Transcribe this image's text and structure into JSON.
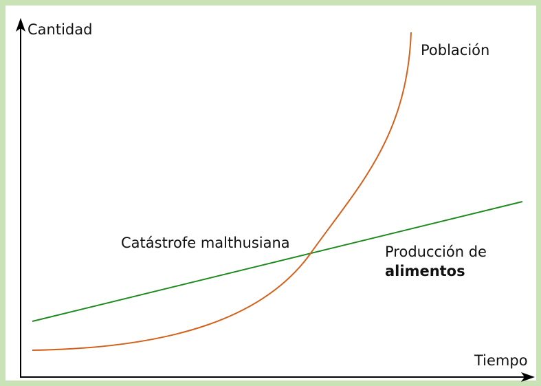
{
  "axes": {
    "y_label": "Cantidad",
    "x_label": "Tiempo"
  },
  "curves": [
    {
      "label": [
        "Población"
      ]
    },
    {
      "label": [
        "Producción de",
        "alimentos"
      ]
    }
  ],
  "annotation": "Catástrofe malthusiana"
}
